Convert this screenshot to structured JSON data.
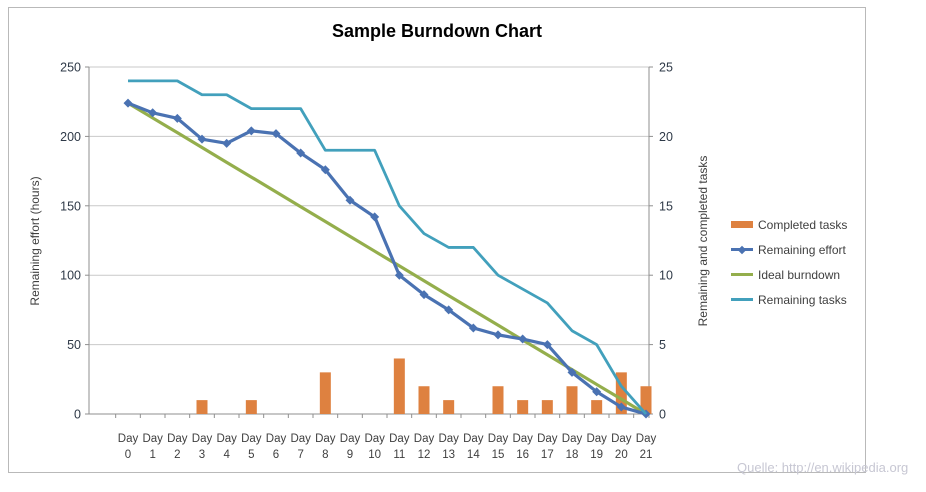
{
  "watermark": "Quelle: http://en.wikipedia.org",
  "chart_data": {
    "type": "combo-bar-line",
    "title": "Sample Burndown Chart",
    "grid": true,
    "legend_position": "right",
    "x_categories": [
      "Day 0",
      "Day 1",
      "Day 2",
      "Day 3",
      "Day 4",
      "Day 5",
      "Day 6",
      "Day 7",
      "Day 8",
      "Day 9",
      "Day 10",
      "Day 11",
      "Day 12",
      "Day 13",
      "Day 14",
      "Day 15",
      "Day 16",
      "Day 17",
      "Day 18",
      "Day 19",
      "Day 20",
      "Day 21"
    ],
    "left_axis": {
      "label": "Remaining effort (hours)",
      "min": 0,
      "max": 250,
      "ticks": [
        0,
        50,
        100,
        150,
        200,
        250
      ]
    },
    "right_axis": {
      "label": "Remaining and completed tasks",
      "min": 0,
      "max": 25,
      "ticks": [
        0,
        5,
        10,
        15,
        20,
        25
      ]
    },
    "series": [
      {
        "name": "Completed tasks",
        "type": "bar",
        "axis": "right",
        "color": "#de8140",
        "values": [
          0,
          0,
          0,
          1,
          0,
          1,
          0,
          0,
          3,
          0,
          0,
          4,
          2,
          1,
          0,
          2,
          1,
          1,
          2,
          1,
          3,
          2
        ]
      },
      {
        "name": "Remaining effort",
        "type": "line",
        "marker": "diamond",
        "axis": "left",
        "color": "#4a72b2",
        "values": [
          224,
          217,
          213,
          198,
          195,
          204,
          202,
          188,
          176,
          154,
          142,
          100,
          86,
          75,
          62,
          57,
          54,
          50,
          30,
          16,
          5,
          0
        ]
      },
      {
        "name": "Ideal burndown",
        "type": "line",
        "axis": "left",
        "color": "#94ae4c",
        "values": [
          224,
          213.3,
          202.7,
          192,
          181.3,
          170.7,
          160,
          149.3,
          138.7,
          128,
          117.3,
          106.7,
          96,
          85.3,
          74.7,
          64,
          53.3,
          42.7,
          32,
          21.3,
          10.7,
          0
        ]
      },
      {
        "name": "Remaining tasks",
        "type": "line",
        "axis": "right",
        "color": "#42a0bc",
        "values": [
          24,
          24,
          24,
          23,
          23,
          22,
          22,
          22,
          19,
          19,
          19,
          15,
          13,
          12,
          12,
          10,
          9,
          8,
          6,
          5,
          2,
          0
        ]
      }
    ]
  }
}
